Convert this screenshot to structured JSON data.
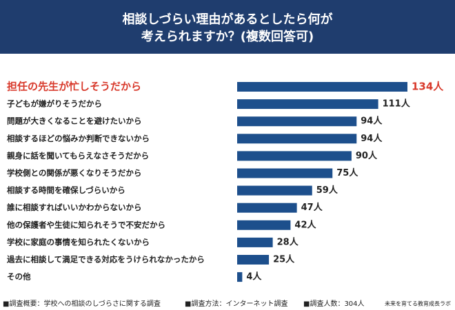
{
  "chart_data": {
    "type": "hbar",
    "title": [
      "相談しづらい理由があるとしたら何が",
      "考えられますか？(複数回答可)"
    ],
    "categories": [
      "担任の先生が忙しそうだから",
      "子どもが嫌がりそうだから",
      "問題が大きくなることを避けたいから",
      "相談するほどの悩みか判断できないから",
      "親身に話を聞いてもらえなさそうだから",
      "学校側との関係が悪くなりそうだから",
      "相談する時間を確保しづらいから",
      "誰に相談すればいいかわからないから",
      "他の保護者や生徒に知られそうで不安だから",
      "学校に家庭の事情を知られたくないから",
      "過去に相談して満足できる対応をうけられなかったから",
      "その他"
    ],
    "values": [
      134,
      111,
      94,
      94,
      90,
      75,
      59,
      47,
      42,
      28,
      25,
      4
    ],
    "value_labels": [
      "134人",
      "111人",
      "94人",
      "94人",
      "90人",
      "75人",
      "59人",
      "47人",
      "42人",
      "28人",
      "25人",
      "4人"
    ],
    "color": "#1d4f8c",
    "label_colors": [
      "#d8392b",
      "#222222",
      "#222222",
      "#222222",
      "#222222",
      "#222222",
      "#222222",
      "#222222",
      "#222222",
      "#222222",
      "#222222",
      "#222222"
    ],
    "notes": [
      "■調査概要：学校への相談のしづらさに関する調査",
      "■調査方法：インターネット調査",
      "■調査人数：304人"
    ],
    "source": "未来を育てる教育成長ラボ"
  }
}
